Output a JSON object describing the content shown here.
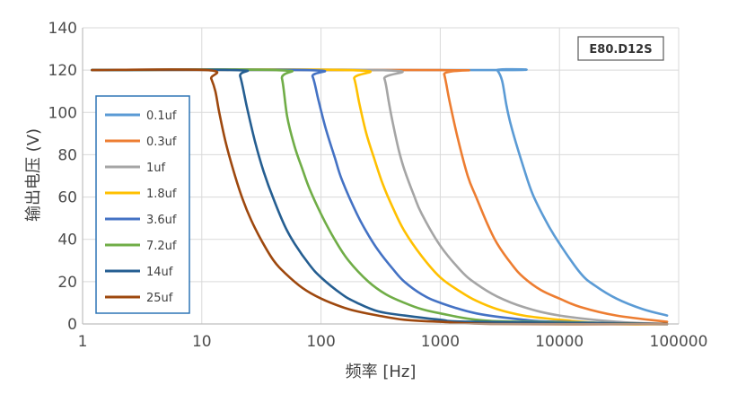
{
  "chart_data": {
    "type": "line",
    "xscale": "log",
    "xlabel": "频率 [Hz]",
    "ylabel": "输出电压 (V)",
    "xlim": [
      1,
      100000
    ],
    "ylim": [
      0,
      140
    ],
    "xticks": [
      1,
      10,
      100,
      1000,
      10000,
      100000
    ],
    "xtick_labels": [
      "1",
      "10",
      "100",
      "1000",
      "10000",
      "100000"
    ],
    "yticks": [
      0,
      20,
      40,
      60,
      80,
      100,
      120,
      140
    ],
    "ytick_labels": [
      "0",
      "20",
      "40",
      "60",
      "80",
      "100",
      "120",
      "140"
    ],
    "grid": true,
    "legend_position": "left",
    "badge": "E80.D12S",
    "series": [
      {
        "name": "0.1uf",
        "color": "#5b9bd5",
        "x": [
          1.2,
          2800,
          3000,
          3300,
          3600,
          4000,
          5000,
          6000,
          8000,
          10000,
          15000,
          20000,
          30000,
          50000,
          80000
        ],
        "y": [
          120,
          120,
          120,
          115,
          103,
          92,
          74,
          61,
          47,
          38,
          24,
          18,
          12,
          7,
          4
        ]
      },
      {
        "name": "0.3uf",
        "color": "#ed7d31",
        "x": [
          1.2,
          1000,
          1080,
          1200,
          1400,
          1700,
          2000,
          2500,
          3000,
          4000,
          5000,
          7000,
          10000,
          15000,
          30000,
          80000
        ],
        "y": [
          120,
          120,
          118,
          105,
          88,
          70,
          60,
          47,
          38,
          28,
          22,
          16,
          12,
          8,
          4,
          1
        ]
      },
      {
        "name": "1uf",
        "color": "#a5a5a5",
        "x": [
          1.2,
          300,
          340,
          370,
          400,
          450,
          500,
          600,
          700,
          1000,
          1500,
          2000,
          3000,
          5000,
          10000,
          30000,
          80000
        ],
        "y": [
          120,
          120,
          116,
          105,
          95,
          82,
          73,
          61,
          52,
          37,
          25,
          19,
          13,
          8,
          4,
          1,
          0
        ]
      },
      {
        "name": "1.8uf",
        "color": "#ffc000",
        "x": [
          1.2,
          170,
          190,
          210,
          240,
          280,
          330,
          400,
          500,
          700,
          1000,
          1500,
          2000,
          3000,
          5000,
          10000,
          30000,
          80000
        ],
        "y": [
          120,
          120,
          116,
          104,
          90,
          78,
          66,
          55,
          44,
          32,
          22,
          15,
          11,
          7,
          4,
          2,
          0,
          0
        ]
      },
      {
        "name": "3.6uf",
        "color": "#4472c4",
        "x": [
          1.2,
          75,
          85,
          95,
          110,
          130,
          150,
          200,
          250,
          300,
          400,
          500,
          700,
          1000,
          2000,
          5000,
          10000,
          80000
        ],
        "y": [
          120,
          120,
          117,
          106,
          92,
          79,
          68,
          52,
          42,
          35,
          26,
          20,
          14,
          10,
          5,
          2,
          1,
          0
        ]
      },
      {
        "name": "7.2uf",
        "color": "#70ad47",
        "x": [
          1.2,
          42,
          47,
          52,
          60,
          70,
          80,
          100,
          130,
          170,
          250,
          350,
          500,
          700,
          1000,
          2000,
          5000,
          80000
        ],
        "y": [
          120,
          120,
          116,
          98,
          84,
          73,
          64,
          52,
          40,
          30,
          20,
          14,
          10,
          7,
          5,
          2,
          1,
          0
        ]
      },
      {
        "name": "14uf",
        "color": "#255e91",
        "x": [
          1.2,
          19,
          21,
          24,
          28,
          33,
          40,
          50,
          60,
          80,
          100,
          150,
          200,
          300,
          500,
          1000,
          2000,
          80000
        ],
        "y": [
          120,
          120,
          117,
          102,
          86,
          72,
          59,
          46,
          38,
          28,
          22,
          14,
          10,
          6,
          4,
          2,
          1,
          0
        ]
      },
      {
        "name": "25uf",
        "color": "#9e480e",
        "x": [
          1.2,
          11,
          12,
          13,
          14,
          16,
          19,
          22,
          26,
          32,
          40,
          50,
          70,
          100,
          150,
          200,
          300,
          500,
          1000,
          3000,
          80000
        ],
        "y": [
          120,
          120,
          116,
          110,
          100,
          85,
          70,
          59,
          49,
          39,
          30,
          24,
          17,
          12,
          8,
          6,
          4,
          2,
          1,
          0,
          0
        ]
      }
    ]
  }
}
